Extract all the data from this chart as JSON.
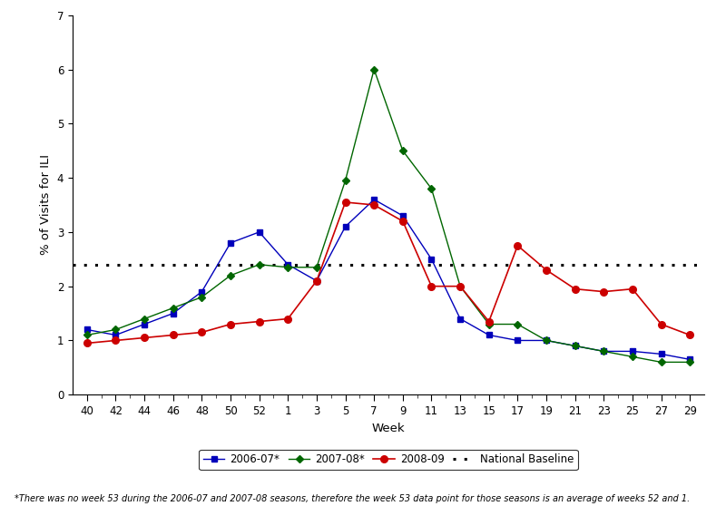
{
  "x_labels": [
    "40",
    "42",
    "44",
    "46",
    "48",
    "50",
    "52",
    "1",
    "3",
    "5",
    "7",
    "9",
    "11",
    "13",
    "15",
    "17",
    "19",
    "21",
    "23",
    "25",
    "27",
    "29"
  ],
  "x_tick_positions": [
    0,
    2,
    4,
    6,
    8,
    10,
    12,
    14,
    16,
    18,
    20,
    22,
    24,
    26,
    28,
    30,
    32,
    34,
    36,
    38,
    40,
    42
  ],
  "x_all_ticks": [
    0,
    1,
    2,
    3,
    4,
    5,
    6,
    7,
    8,
    9,
    10,
    11,
    12,
    13,
    14,
    15,
    16,
    17,
    18,
    19,
    20,
    21,
    22,
    23,
    24,
    25,
    26,
    27,
    28,
    29,
    30,
    31,
    32,
    33,
    34,
    35,
    36,
    37,
    38,
    39,
    40,
    41,
    42
  ],
  "season_2006_07_x": [
    0,
    2,
    4,
    6,
    8,
    10,
    12,
    14,
    16,
    18,
    20,
    22,
    24,
    26,
    28,
    30,
    32,
    34,
    36,
    38,
    40,
    42
  ],
  "season_2006_07": [
    1.2,
    1.1,
    1.3,
    1.5,
    1.9,
    2.8,
    3.0,
    2.4,
    2.1,
    3.1,
    3.6,
    3.3,
    2.5,
    1.4,
    1.1,
    1.0,
    1.0,
    0.9,
    0.8,
    0.8,
    0.75,
    0.65
  ],
  "season_2007_08_x": [
    0,
    2,
    4,
    6,
    8,
    10,
    12,
    14,
    16,
    18,
    20,
    22,
    24,
    26,
    28,
    30,
    32,
    34,
    36,
    38,
    40,
    42
  ],
  "season_2007_08": [
    1.1,
    1.2,
    1.4,
    1.6,
    1.8,
    2.2,
    2.4,
    2.35,
    2.35,
    3.95,
    6.0,
    4.5,
    3.8,
    2.0,
    1.3,
    1.3,
    1.0,
    0.9,
    0.8,
    0.7,
    0.6,
    0.6
  ],
  "season_2008_09_x": [
    0,
    2,
    4,
    6,
    8,
    10,
    12,
    14,
    16,
    18,
    20,
    22,
    24,
    26,
    28,
    30,
    32,
    34,
    36,
    38,
    40,
    42
  ],
  "season_2008_09": [
    0.95,
    1.0,
    1.05,
    1.1,
    1.15,
    1.3,
    1.35,
    1.4,
    2.1,
    3.55,
    3.5,
    3.2,
    2.0,
    2.0,
    1.35,
    2.75,
    2.3,
    1.95,
    1.9,
    1.95,
    1.3,
    1.1
  ],
  "national_baseline": 2.4,
  "ylabel": "% of Visits for ILI",
  "xlabel": "Week",
  "ylim": [
    0,
    7
  ],
  "yticks": [
    0,
    1,
    2,
    3,
    4,
    5,
    6,
    7
  ],
  "color_2006_07": "#0000BB",
  "color_2007_08": "#006600",
  "color_2008_09": "#CC0000",
  "color_baseline": "#000000",
  "legend_labels": [
    "2006-07*",
    "2007-08*",
    "2008-09",
    "National Baseline"
  ],
  "footnote": "*There was no week 53 during the 2006-07 and 2007-08 seasons, therefore the week 53 data point for those seasons is an average of weeks 52 and 1."
}
